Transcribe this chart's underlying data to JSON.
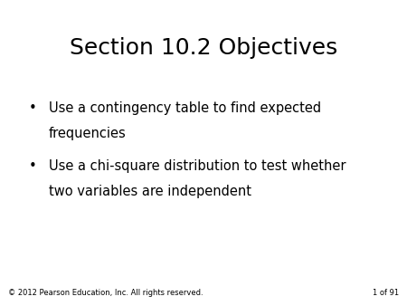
{
  "title": "Section 10.2 Objectives",
  "bullet1_line1": "Use a contingency table to find expected",
  "bullet1_line2": "frequencies",
  "bullet2_line1": "Use a chi-square distribution to test whether",
  "bullet2_line2": "two variables are independent",
  "footer_left": "© 2012 Pearson Education, Inc. All rights reserved.",
  "footer_right": "1 of 91",
  "bg_color": "#ffffff",
  "text_color": "#000000",
  "title_fontsize": 18,
  "bullet_fontsize": 10.5,
  "footer_fontsize": 6,
  "bullet_symbol": "•"
}
